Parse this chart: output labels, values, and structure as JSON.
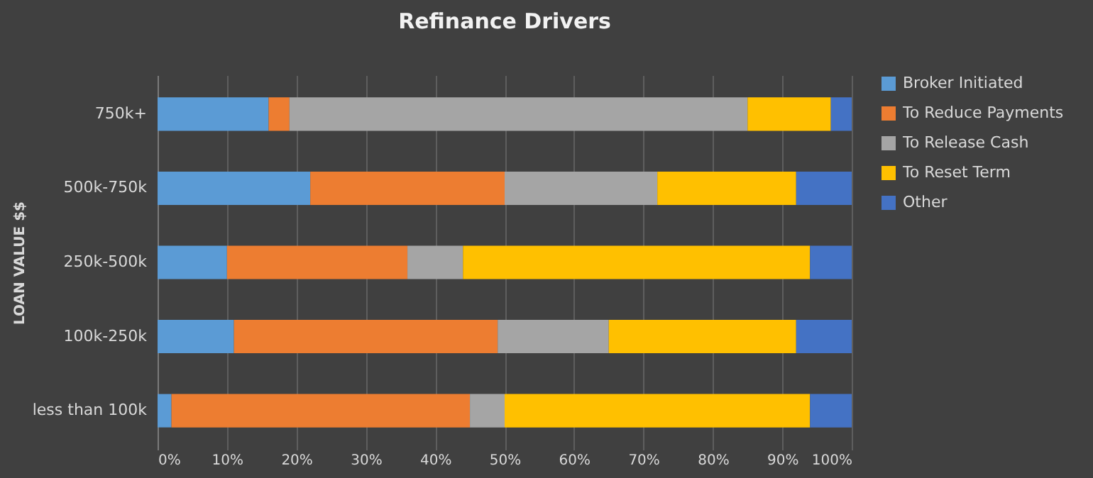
{
  "chart_data": {
    "type": "bar",
    "orientation": "horizontal",
    "stacked": true,
    "title": "Refinance Drivers",
    "ylabel": "LOAN VALUE $$",
    "categories": [
      "750k+",
      "500k-750k",
      "250k-500k",
      "100k-250k",
      "less than 100k"
    ],
    "series": [
      {
        "name": "Broker Initiated",
        "color": "#5b9bd5",
        "values": [
          16,
          22,
          10,
          11,
          2
        ]
      },
      {
        "name": "To Reduce Payments",
        "color": "#ed7d31",
        "values": [
          3,
          28,
          26,
          38,
          43
        ]
      },
      {
        "name": "To Release Cash",
        "color": "#a5a5a5",
        "values": [
          66,
          22,
          8,
          16,
          5
        ]
      },
      {
        "name": "To Reset Term",
        "color": "#ffc000",
        "values": [
          12,
          20,
          50,
          27,
          44
        ]
      },
      {
        "name": "Other",
        "color": "#4472c4",
        "values": [
          3,
          8,
          6,
          8,
          6
        ]
      }
    ],
    "xlim": [
      0,
      100
    ],
    "xticks": [
      {
        "value": 0,
        "label": "0%"
      },
      {
        "value": 10,
        "label": "10%"
      },
      {
        "value": 20,
        "label": "20%"
      },
      {
        "value": 30,
        "label": "30%"
      },
      {
        "value": 40,
        "label": "40%"
      },
      {
        "value": 50,
        "label": "50%"
      },
      {
        "value": 60,
        "label": "60%"
      },
      {
        "value": 70,
        "label": "70%"
      },
      {
        "value": 80,
        "label": "80%"
      },
      {
        "value": 90,
        "label": "90%"
      },
      {
        "value": 100,
        "label": "100%"
      }
    ],
    "grid": "x",
    "legend": "right"
  }
}
